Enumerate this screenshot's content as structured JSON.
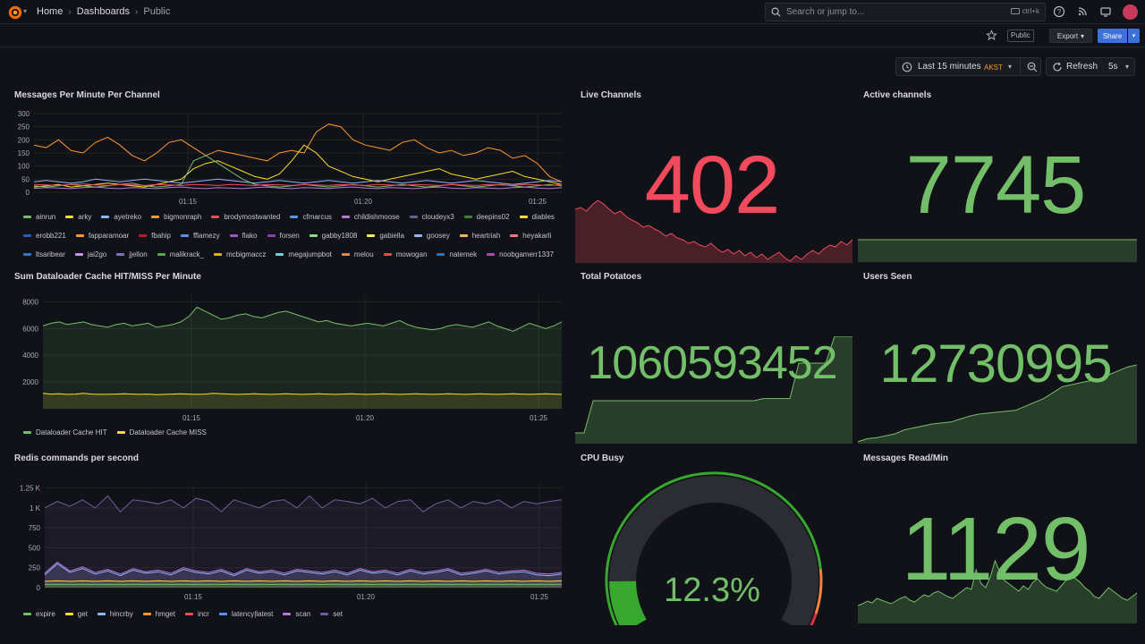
{
  "breadcrumb": [
    "Home",
    "Dashboards",
    "Public"
  ],
  "search": {
    "placeholder": "Search or jump to...",
    "shortcut": "ctrl+k"
  },
  "toolbar": {
    "public_tag": "Public",
    "export_label": "Export",
    "share_label": "Share"
  },
  "timepicker": {
    "range": "Last 15 minutes",
    "timezone": "AKST",
    "refresh_label": "Refresh",
    "refresh_interval": "5s"
  },
  "panels": {
    "messages": {
      "title": "Messages Per Minute Per Channel"
    },
    "live": {
      "title": "Live Channels",
      "value": "402",
      "color": "#f2495c"
    },
    "active": {
      "title": "Active channels",
      "value": "7745",
      "color": "#73bf69"
    },
    "dataloader": {
      "title": "Sum Dataloader Cache HIT/MISS Per Minute"
    },
    "potatoes": {
      "title": "Total Potatoes",
      "value": "1060593452",
      "color": "#73bf69"
    },
    "users": {
      "title": "Users Seen",
      "value": "12730995",
      "color": "#73bf69"
    },
    "redis": {
      "title": "Redis commands per second"
    },
    "cpu": {
      "title": "CPU Busy",
      "value": "12.3%",
      "percent": 12.3
    },
    "readmin": {
      "title": "Messages Read/Min",
      "value": "1129",
      "color": "#73bf69"
    }
  },
  "legends": {
    "messages": [
      {
        "name": "ainrun",
        "color": "#73bf69"
      },
      {
        "name": "arky",
        "color": "#fade2a"
      },
      {
        "name": "ayetreko",
        "color": "#8ab8ff"
      },
      {
        "name": "bigmonraph",
        "color": "#ff9830"
      },
      {
        "name": "brodymostwanted",
        "color": "#f2495c"
      },
      {
        "name": "cfmarcus",
        "color": "#5794f2"
      },
      {
        "name": "childishmoose",
        "color": "#b877d9"
      },
      {
        "name": "cloudeyx3",
        "color": "#705da0"
      },
      {
        "name": "deepins02",
        "color": "#37872d"
      },
      {
        "name": "diables",
        "color": "#fade2a"
      },
      {
        "name": "erobb221",
        "color": "#1f60c4"
      },
      {
        "name": "fapparamoar",
        "color": "#ff9830"
      },
      {
        "name": "fbahip",
        "color": "#c4162a"
      },
      {
        "name": "fflamezy",
        "color": "#5794f2"
      },
      {
        "name": "flako",
        "color": "#a352cc"
      },
      {
        "name": "forsen",
        "color": "#8f3bb8"
      },
      {
        "name": "gabby1808",
        "color": "#96d98d"
      },
      {
        "name": "gabiella",
        "color": "#ffee52"
      },
      {
        "name": "goosey",
        "color": "#8ab8ff"
      },
      {
        "name": "heartriah",
        "color": "#ffb357"
      },
      {
        "name": "heyakarli",
        "color": "#ff7383"
      },
      {
        "name": "ltsaribear",
        "color": "#3274d9"
      },
      {
        "name": "jai2go",
        "color": "#ca95e5"
      },
      {
        "name": "jjellon",
        "color": "#806eb7"
      },
      {
        "name": "malikrack_",
        "color": "#56a64b"
      },
      {
        "name": "mcbigmaccz",
        "color": "#e0b400"
      },
      {
        "name": "megajumpbot",
        "color": "#6ed0e0"
      },
      {
        "name": "melou",
        "color": "#ef843c"
      },
      {
        "name": "mowogan",
        "color": "#e24d42"
      },
      {
        "name": "natemek",
        "color": "#1f78c1"
      },
      {
        "name": "noobgamerr1337",
        "color": "#ba43a9"
      }
    ],
    "dataloader": [
      {
        "name": "Dataloader Cache HIT",
        "color": "#73bf69"
      },
      {
        "name": "Dataloader Cache MISS",
        "color": "#fade2a"
      }
    ],
    "redis": [
      {
        "name": "expire",
        "color": "#73bf69"
      },
      {
        "name": "get",
        "color": "#fade2a"
      },
      {
        "name": "hincrby",
        "color": "#8ab8ff"
      },
      {
        "name": "hmget",
        "color": "#ff9830"
      },
      {
        "name": "incr",
        "color": "#f2495c"
      },
      {
        "name": "latency|latest",
        "color": "#5794f2"
      },
      {
        "name": "scan",
        "color": "#b877d9"
      },
      {
        "name": "set",
        "color": "#705da0"
      }
    ]
  },
  "chart_data": [
    {
      "type": "line",
      "title": "Messages Per Minute Per Channel",
      "x_ticks": [
        "01:15",
        "01:20",
        "01:25"
      ],
      "y_ticks": [
        "0",
        "50",
        "100",
        "150",
        "200",
        "250",
        "300"
      ],
      "ylim": [
        0,
        300
      ],
      "series": [
        {
          "name": "bigmonraph",
          "color": "#ff9830",
          "values": [
            180,
            170,
            200,
            160,
            150,
            190,
            210,
            180,
            140,
            120,
            150,
            190,
            200,
            170,
            140,
            160,
            150,
            140,
            130,
            120,
            150,
            160,
            150,
            230,
            260,
            250,
            200,
            180,
            170,
            160,
            190,
            200,
            170,
            150,
            160,
            140,
            150,
            170,
            160,
            130,
            140,
            110,
            60,
            40
          ]
        },
        {
          "name": "arky",
          "color": "#fade2a",
          "values": [
            20,
            25,
            30,
            20,
            25,
            30,
            35,
            30,
            25,
            20,
            30,
            40,
            50,
            90,
            110,
            120,
            100,
            80,
            60,
            50,
            70,
            120,
            180,
            150,
            100,
            80,
            60,
            50,
            40,
            50,
            60,
            70,
            80,
            90,
            70,
            60,
            50,
            60,
            70,
            80,
            60,
            50,
            40,
            30
          ]
        },
        {
          "name": "ayetreko",
          "color": "#8ab8ff",
          "values": [
            40,
            45,
            40,
            35,
            40,
            50,
            45,
            40,
            45,
            50,
            45,
            40,
            35,
            40,
            45,
            50,
            45,
            40,
            35,
            40,
            45,
            40,
            35,
            40,
            45,
            40,
            35,
            40,
            45,
            40,
            35,
            40,
            45,
            40,
            35,
            40,
            45,
            40,
            35,
            30,
            35,
            40,
            45,
            40
          ]
        },
        {
          "name": "ainrun",
          "color": "#73bf69",
          "values": [
            25,
            20,
            25,
            30,
            25,
            20,
            25,
            30,
            35,
            25,
            20,
            25,
            30,
            120,
            140,
            110,
            80,
            50,
            30,
            25,
            20,
            25,
            30,
            25,
            20,
            25,
            30,
            25,
            20,
            25,
            30,
            25,
            20,
            25,
            30,
            25,
            20,
            25,
            30,
            25,
            20,
            25,
            30,
            25
          ]
        },
        {
          "name": "brodymostwanted",
          "color": "#f2495c",
          "values": [
            30,
            28,
            26,
            30,
            32,
            28,
            26,
            30,
            28,
            26,
            30,
            28,
            26,
            30,
            28,
            26,
            30,
            28,
            26,
            30,
            28,
            26,
            30,
            28,
            26,
            30,
            28,
            26,
            30,
            28,
            26,
            30,
            28,
            26,
            30,
            28,
            26,
            30,
            28,
            26,
            30,
            28,
            26,
            30
          ]
        },
        {
          "name": "childishmoose",
          "color": "#b877d9",
          "values": [
            15,
            18,
            16,
            14,
            18,
            20,
            16,
            14,
            18,
            16,
            14,
            18,
            20,
            16,
            14,
            18,
            16,
            14,
            18,
            20,
            16,
            14,
            18,
            16,
            14,
            18,
            20,
            16,
            14,
            18,
            16,
            14,
            18,
            20,
            16,
            14,
            18,
            16,
            14,
            18,
            20,
            16,
            14,
            18
          ]
        }
      ]
    },
    {
      "type": "area",
      "title": "Live Channels",
      "values": [
        60,
        62,
        58,
        65,
        70,
        66,
        60,
        55,
        58,
        52,
        48,
        45,
        40,
        42,
        38,
        35,
        30,
        33,
        28,
        26,
        22,
        24,
        20,
        18,
        22,
        16,
        12,
        15,
        10,
        14,
        8,
        12,
        6,
        10,
        4,
        8,
        12,
        6,
        2,
        8,
        4,
        10,
        14,
        10,
        16,
        20,
        18,
        24,
        20,
        26
      ]
    },
    {
      "type": "area",
      "title": "Active channels",
      "values": [
        50,
        50,
        50,
        50,
        50,
        50,
        50,
        50,
        50,
        50,
        50,
        50,
        50,
        50,
        50,
        50,
        50,
        50,
        50,
        50
      ]
    },
    {
      "type": "line",
      "title": "Sum Dataloader Cache HIT/MISS Per Minute",
      "x_ticks": [
        "01:15",
        "01:20",
        "01:25"
      ],
      "y_ticks": [
        "2000",
        "4000",
        "6000",
        "8000"
      ],
      "ylim": [
        0,
        8500
      ],
      "series": [
        {
          "name": "Dataloader Cache HIT",
          "color": "#73bf69",
          "values": [
            6200,
            6400,
            6500,
            6300,
            6400,
            6500,
            6300,
            6200,
            6100,
            6300,
            6400,
            6200,
            6300,
            6400,
            6100,
            6200,
            6300,
            6500,
            6900,
            7600,
            7300,
            7000,
            6700,
            6800,
            7000,
            7100,
            6900,
            6800,
            7000,
            7200,
            7300,
            7100,
            6900,
            6700,
            6500,
            6600,
            6400,
            6300,
            6200,
            6300,
            6400,
            6300,
            6200,
            6400,
            6600,
            6300,
            6100,
            6000,
            5900,
            6000,
            6200,
            6300,
            6200,
            6100,
            6300,
            6500,
            6200,
            6000,
            5800,
            6100,
            6400,
            6200,
            6000,
            6200,
            6500
          ]
        },
        {
          "name": "Dataloader Cache MISS",
          "color": "#fade2a",
          "values": [
            1150,
            1100,
            1120,
            1080,
            1100,
            1150,
            1100,
            1080,
            1090,
            1100,
            1120,
            1100,
            1080,
            1100,
            1050,
            1080,
            1100,
            1120,
            1100,
            1080,
            1100,
            1150,
            1120,
            1100,
            1080,
            1100,
            1120,
            1100,
            1080,
            1100,
            1120,
            1100,
            1080,
            1100,
            1120,
            1100,
            1080,
            1100,
            1120,
            1100,
            1080,
            1100,
            1120,
            1100,
            1080,
            1100,
            1120,
            1100,
            1080,
            1100,
            1120,
            1100,
            1080,
            1100,
            1120,
            1100,
            1080,
            1100,
            1120,
            1100,
            1080,
            1100,
            1120,
            1100,
            1080
          ]
        }
      ]
    },
    {
      "type": "area",
      "title": "Total Potatoes",
      "values": [
        10,
        10,
        40,
        40,
        40,
        40,
        40,
        40,
        40,
        40,
        40,
        40,
        40,
        40,
        40,
        40,
        40,
        40,
        40,
        40,
        40,
        42,
        42,
        42,
        42,
        75,
        75,
        75,
        75,
        100,
        100,
        100
      ]
    },
    {
      "type": "area",
      "title": "Users Seen",
      "values": [
        2,
        5,
        6,
        8,
        10,
        14,
        16,
        18,
        20,
        21,
        22,
        25,
        28,
        30,
        31,
        32,
        33,
        34,
        38,
        42,
        46,
        52,
        58,
        60,
        62,
        64,
        66,
        70,
        74,
        78,
        80
      ]
    },
    {
      "type": "line",
      "title": "Redis commands per second",
      "x_ticks": [
        "01:15",
        "01:20",
        "01:25"
      ],
      "y_ticks": [
        "0",
        "250",
        "500",
        "750",
        "1 K",
        "1.25 K"
      ],
      "ylim": [
        0,
        1300
      ],
      "series": [
        {
          "name": "set",
          "color": "#705da0",
          "values": [
            1000,
            1080,
            1020,
            1100,
            1000,
            1150,
            950,
            1100,
            1080,
            1050,
            1100,
            1000,
            1120,
            1080,
            950,
            1100,
            1050,
            1000,
            1080,
            1100,
            1000,
            1150,
            1000,
            1100,
            1080,
            1050,
            1120,
            1000,
            1080,
            1100,
            950,
            1050,
            1100,
            1000,
            1080,
            1050,
            1100,
            1000,
            1080,
            1050,
            1080,
            1100
          ]
        },
        {
          "name": "scan",
          "color": "#b877d9",
          "values": [
            180,
            320,
            210,
            260,
            190,
            230,
            170,
            240,
            200,
            220,
            180,
            250,
            210,
            190,
            230,
            170,
            240,
            200,
            220,
            180,
            230,
            210,
            190,
            220,
            180,
            240,
            200,
            220,
            180,
            230,
            190,
            210,
            240,
            180,
            200,
            230,
            190,
            210,
            220,
            180,
            170,
            190
          ]
        },
        {
          "name": "hincrby",
          "color": "#8ab8ff",
          "values": [
            160,
            300,
            190,
            240,
            170,
            210,
            150,
            220,
            180,
            200,
            160,
            230,
            190,
            170,
            210,
            150,
            220,
            180,
            200,
            160,
            210,
            190,
            170,
            200,
            160,
            220,
            180,
            200,
            160,
            210,
            170,
            190,
            220,
            160,
            180,
            210,
            170,
            190,
            200,
            160,
            150,
            170
          ]
        },
        {
          "name": "get",
          "color": "#fade2a",
          "values": [
            80,
            85,
            80,
            85,
            80,
            85,
            80,
            85,
            80,
            85,
            80,
            85,
            80,
            85,
            80,
            85,
            80,
            85,
            80,
            85,
            80,
            85,
            80,
            85,
            80,
            85,
            80,
            85,
            80,
            85,
            80,
            85,
            80,
            85,
            80,
            85,
            80,
            85,
            80,
            85,
            80,
            85
          ]
        },
        {
          "name": "expire",
          "color": "#73bf69",
          "values": [
            40,
            42,
            40,
            42,
            40,
            42,
            40,
            42,
            40,
            42,
            40,
            42,
            40,
            42,
            40,
            42,
            40,
            42,
            40,
            42,
            40,
            42,
            40,
            42,
            40,
            42,
            40,
            42,
            40,
            42,
            40,
            42,
            40,
            42,
            40,
            42,
            40,
            42,
            40,
            42,
            40,
            42
          ]
        }
      ]
    },
    {
      "type": "area",
      "title": "Messages Read/Min",
      "values": [
        20,
        22,
        25,
        23,
        28,
        26,
        24,
        22,
        25,
        28,
        30,
        26,
        24,
        28,
        32,
        30,
        34,
        36,
        33,
        30,
        28,
        32,
        36,
        40,
        38,
        60,
        45,
        40,
        52,
        70,
        58,
        48,
        44,
        40,
        36,
        42,
        38,
        46,
        50,
        44,
        40,
        38,
        36,
        42,
        48,
        56,
        50,
        46,
        40,
        36,
        30,
        28,
        34,
        40,
        36,
        32,
        28,
        26,
        30,
        34
      ]
    }
  ]
}
